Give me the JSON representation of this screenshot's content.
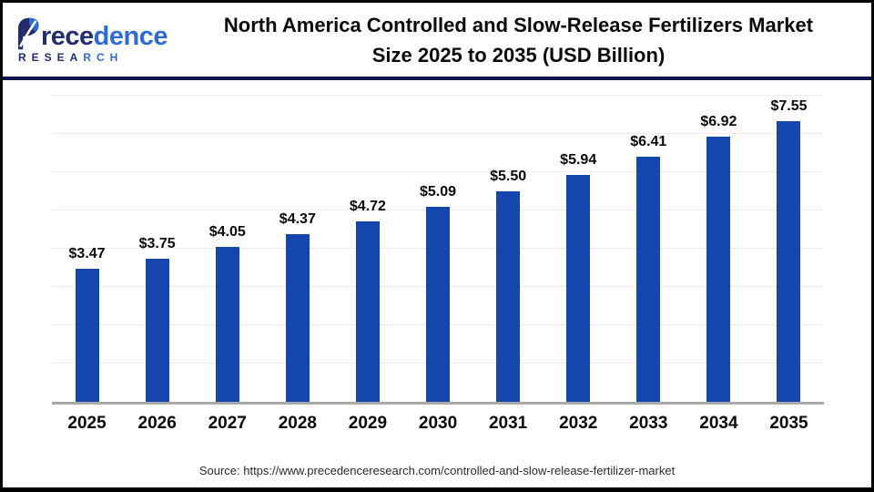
{
  "header": {
    "logo": {
      "brand": "Precedence",
      "brand_part1": "rece",
      "brand_part2": "dence",
      "research": "RESEARCH",
      "research_part1": "RESEA",
      "research_part2": "RCH"
    },
    "title_line1": "North America Controlled and Slow-Release Fertilizers Market",
    "title_line2": "Size 2025 to 2035 (USD Billion)"
  },
  "chart_data": {
    "type": "bar",
    "title": "North America Controlled and Slow-Release Fertilizers Market Size 2025 to 2035 (USD Billion)",
    "categories": [
      "2025",
      "2026",
      "2027",
      "2028",
      "2029",
      "2030",
      "2031",
      "2032",
      "2033",
      "2034",
      "2035"
    ],
    "values": [
      3.47,
      3.75,
      4.05,
      4.37,
      4.72,
      5.09,
      5.5,
      5.94,
      6.41,
      6.92,
      7.55
    ],
    "value_labels": [
      "$3.47",
      "$3.75",
      "$4.05",
      "$4.37",
      "$4.72",
      "$5.09",
      "$5.50",
      "$5.94",
      "$6.41",
      "$6.92",
      "$7.55"
    ],
    "xlabel": "",
    "ylabel": "",
    "ylim": [
      0,
      8
    ],
    "grid": true,
    "gridline_interval": 1,
    "legend": "none",
    "bar_color": "#1546ae",
    "gridline_color": "#ececec",
    "axis_color": "#a9a9a9"
  },
  "footer": {
    "source": "Source: https://www.precedenceresearch.com/controlled-and-slow-release-fertilizer-market"
  },
  "colors": {
    "logo_navy": "#232d6b",
    "logo_blue": "#2e6bd2",
    "divider_navy": "#11114a",
    "title_text": "#0a0a0a"
  }
}
